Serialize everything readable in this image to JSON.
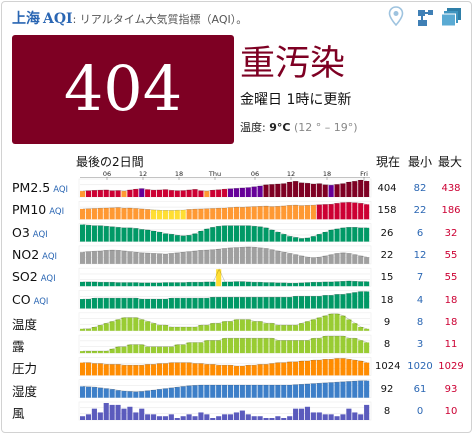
{
  "header": {
    "city": "上海",
    "aqi_label": "AQI",
    "subtitle": ": リアルタイム大気質指標（AQI）。"
  },
  "icons": [
    "location-pin-icon",
    "share-icon",
    "layers-icon"
  ],
  "current": {
    "aqi": "404",
    "level": "重汚染",
    "updated": "金曜日 1時に更新",
    "temp_label": "温度: ",
    "temp_value": "9°C",
    "temp_range": "(12 ° – 19°)"
  },
  "panel": {
    "title": "最後の2日間",
    "col_current": "現在",
    "col_min": "最小",
    "col_max": "最大",
    "unit_aqi": "AQI"
  },
  "time_ticks": [
    "06",
    "12",
    "18",
    "Thu",
    "06",
    "12",
    "18",
    "Fri"
  ],
  "colors": {
    "good": "#009966",
    "moderate": "#ffde33",
    "usg": "#ff9933",
    "unhealthy": "#cc0033",
    "very_unhealthy": "#660099",
    "hazardous": "#7e0023",
    "gray": "#a0a0a0",
    "temp": "#99cc33",
    "pressure": "#ff8c00",
    "humidity": "#3d7fc8",
    "wind": "#5b5bbd"
  },
  "rows": [
    {
      "label": "PM2.5",
      "has_unit": true,
      "current": "404",
      "min": "82",
      "max": "438",
      "type": "aqi",
      "values": [
        150,
        160,
        170,
        175,
        180,
        160,
        165,
        150,
        180,
        200,
        215,
        190,
        175,
        180,
        190,
        170,
        160,
        165,
        180,
        195,
        160,
        150,
        175,
        185,
        200,
        210,
        220,
        230,
        240,
        260,
        280,
        310,
        320,
        330,
        340,
        380,
        400,
        360,
        350,
        330,
        340,
        310,
        300,
        320,
        340,
        380,
        400,
        430,
        404
      ]
    },
    {
      "label": "PM10",
      "has_unit": true,
      "current": "158",
      "min": "22",
      "max": "186",
      "type": "aqi",
      "values": [
        110,
        112,
        115,
        118,
        120,
        122,
        125,
        118,
        120,
        115,
        110,
        105,
        100,
        96,
        95,
        94,
        96,
        98,
        105,
        108,
        110,
        112,
        115,
        118,
        120,
        125,
        130,
        128,
        132,
        135,
        138,
        140,
        135,
        138,
        142,
        148,
        150,
        145,
        148,
        150,
        155,
        158,
        160,
        170,
        178,
        180,
        176,
        170,
        158
      ]
    },
    {
      "label": "O3",
      "has_unit": true,
      "current": "26",
      "min": "6",
      "max": "32",
      "type": "aqi",
      "values": [
        32,
        31,
        30,
        30,
        29,
        28,
        27,
        26,
        26,
        25,
        23,
        22,
        20,
        18,
        15,
        14,
        12,
        11,
        12,
        15,
        20,
        24,
        27,
        29,
        30,
        30,
        30,
        30,
        30,
        29,
        28,
        26,
        22,
        18,
        14,
        10,
        8,
        6,
        7,
        10,
        14,
        18,
        22,
        24,
        26,
        27,
        27,
        26,
        26
      ]
    },
    {
      "label": "NO2",
      "has_unit": true,
      "current": "22",
      "min": "12",
      "max": "55",
      "type": "gray",
      "values": [
        38,
        40,
        41,
        42,
        44,
        45,
        44,
        42,
        40,
        38,
        36,
        35,
        34,
        33,
        32,
        34,
        36,
        38,
        40,
        42,
        44,
        45,
        46,
        48,
        50,
        52,
        53,
        54,
        55,
        54,
        52,
        50,
        46,
        42,
        38,
        34,
        30,
        26,
        22,
        20,
        22,
        26,
        30,
        34,
        36,
        34,
        30,
        26,
        22
      ]
    },
    {
      "label": "SO2",
      "has_unit": true,
      "current": "15",
      "min": "7",
      "max": "55",
      "type": "aqi",
      "values": [
        14,
        14,
        14,
        13,
        13,
        13,
        12,
        12,
        12,
        12,
        11,
        11,
        11,
        11,
        12,
        12,
        12,
        12,
        13,
        13,
        13,
        14,
        14,
        55,
        14,
        14,
        15,
        15,
        14,
        13,
        13,
        12,
        12,
        11,
        11,
        10,
        10,
        11,
        12,
        13,
        13,
        14,
        14,
        15,
        16,
        17,
        16,
        15,
        15
      ]
    },
    {
      "label": "CO",
      "has_unit": true,
      "current": "18",
      "min": "4",
      "max": "18",
      "type": "aqi",
      "values": [
        10,
        10,
        11,
        11,
        11,
        11,
        11,
        11,
        11,
        11,
        10,
        10,
        10,
        10,
        10,
        11,
        11,
        11,
        11,
        11,
        11,
        11,
        12,
        12,
        12,
        12,
        12,
        12,
        12,
        12,
        12,
        12,
        12,
        12,
        12,
        12,
        13,
        13,
        13,
        13,
        13,
        14,
        14,
        15,
        15,
        16,
        17,
        18,
        18
      ]
    },
    {
      "label": "温度",
      "has_unit": false,
      "current": "9",
      "min": "8",
      "max": "18",
      "type": "temp",
      "values": [
        10,
        10,
        11,
        12,
        13,
        14,
        15,
        16,
        16,
        16,
        15,
        14,
        13,
        12,
        12,
        11,
        11,
        11,
        11,
        11,
        12,
        12,
        13,
        13,
        14,
        14,
        15,
        15,
        15,
        14,
        14,
        13,
        13,
        12,
        12,
        12,
        12,
        13,
        14,
        15,
        16,
        17,
        18,
        18,
        17,
        15,
        13,
        11,
        9
      ]
    },
    {
      "label": "露",
      "has_unit": false,
      "current": "8",
      "min": "3",
      "max": "11",
      "type": "temp",
      "values": [
        3,
        3,
        4,
        4,
        4,
        5,
        6,
        6,
        7,
        7,
        7,
        6,
        6,
        6,
        6,
        6,
        7,
        7,
        8,
        8,
        8,
        9,
        9,
        9,
        10,
        10,
        10,
        10,
        10,
        10,
        10,
        10,
        10,
        9,
        9,
        9,
        9,
        9,
        9,
        10,
        10,
        11,
        11,
        11,
        11,
        10,
        10,
        9,
        8
      ]
    },
    {
      "label": "圧力",
      "has_unit": false,
      "current": "1024",
      "min": "1020",
      "max": "1029",
      "type": "pressure",
      "values": [
        1024,
        1024,
        1023,
        1023,
        1022,
        1022,
        1022,
        1021,
        1021,
        1021,
        1021,
        1022,
        1022,
        1023,
        1023,
        1024,
        1024,
        1024,
        1024,
        1023,
        1023,
        1022,
        1022,
        1021,
        1021,
        1021,
        1020,
        1020,
        1021,
        1021,
        1022,
        1022,
        1023,
        1024,
        1024,
        1025,
        1025,
        1026,
        1026,
        1027,
        1027,
        1028,
        1028,
        1029,
        1029,
        1028,
        1027,
        1026,
        1024
      ]
    },
    {
      "label": "湿度",
      "has_unit": false,
      "current": "92",
      "min": "61",
      "max": "93",
      "type": "humidity",
      "values": [
        76,
        75,
        74,
        72,
        70,
        68,
        65,
        63,
        62,
        61,
        62,
        64,
        66,
        68,
        70,
        72,
        74,
        76,
        78,
        79,
        80,
        80,
        80,
        80,
        80,
        80,
        80,
        80,
        80,
        80,
        80,
        80,
        80,
        80,
        80,
        80,
        81,
        82,
        83,
        84,
        85,
        86,
        87,
        88,
        89,
        90,
        91,
        92,
        92
      ]
    },
    {
      "label": "風",
      "has_unit": false,
      "current": "8",
      "min": "0",
      "max": "10",
      "type": "wind",
      "values": [
        2,
        3,
        6,
        4,
        9,
        8,
        8,
        6,
        7,
        4,
        6,
        3,
        3,
        2,
        2,
        3,
        1,
        2,
        3,
        2,
        4,
        3,
        1,
        2,
        3,
        3,
        4,
        5,
        3,
        2,
        2,
        1,
        1,
        2,
        1,
        2,
        6,
        6,
        7,
        4,
        4,
        3,
        3,
        2,
        3,
        6,
        4,
        3,
        8
      ]
    }
  ]
}
